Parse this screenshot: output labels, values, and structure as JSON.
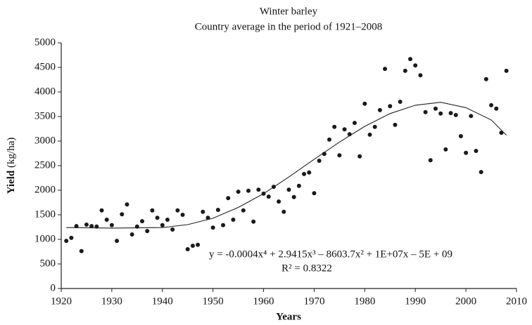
{
  "chart_data": {
    "type": "scatter",
    "title": "Winter barley",
    "subtitle": "Country average in the period of 1921–2008",
    "x_label": "Years",
    "y_label": "Yield",
    "y_unit": "(kg/ha)",
    "annotations": [
      "y = -0.0004x⁴ + 2.9415x³ – 8603.7x² + 1E+07x – 5E + 09",
      "R² = 0.8322"
    ],
    "color": "#1a1a1a",
    "x": [
      1921,
      1922,
      1923,
      1924,
      1925,
      1926,
      1927,
      1928,
      1929,
      1930,
      1931,
      1932,
      1933,
      1934,
      1935,
      1936,
      1937,
      1938,
      1939,
      1940,
      1941,
      1942,
      1943,
      1944,
      1945,
      1946,
      1947,
      1948,
      1949,
      1950,
      1951,
      1952,
      1953,
      1954,
      1955,
      1956,
      1957,
      1958,
      1959,
      1960,
      1961,
      1962,
      1963,
      1964,
      1965,
      1966,
      1967,
      1968,
      1969,
      1970,
      1971,
      1972,
      1973,
      1974,
      1975,
      1976,
      1977,
      1978,
      1979,
      1980,
      1981,
      1982,
      1983,
      1984,
      1985,
      1986,
      1987,
      1988,
      1989,
      1990,
      1991,
      1992,
      1993,
      1994,
      1995,
      1996,
      1997,
      1998,
      1999,
      2000,
      2001,
      2002,
      2003,
      2004,
      2005,
      2006,
      2007,
      2008
    ],
    "values": [
      970,
      1030,
      1270,
      760,
      1300,
      1270,
      1260,
      1590,
      1400,
      1290,
      970,
      1510,
      1710,
      1100,
      1260,
      1370,
      1170,
      1590,
      1440,
      1290,
      1400,
      1200,
      1590,
      1500,
      800,
      870,
      890,
      1560,
      1440,
      1240,
      1600,
      1290,
      1840,
      1400,
      1970,
      1590,
      1990,
      1360,
      2010,
      1930,
      1870,
      2070,
      1770,
      1560,
      2010,
      1860,
      2090,
      2330,
      2360,
      1940,
      2600,
      2740,
      3030,
      3290,
      2710,
      3240,
      3140,
      3370,
      2690,
      3760,
      3130,
      3290,
      3630,
      4470,
      3710,
      3330,
      3800,
      4430,
      4670,
      4540,
      4340,
      3590,
      2610,
      3660,
      3560,
      2830,
      3570,
      3530,
      3100,
      2760,
      3510,
      2800,
      2370,
      4260,
      3730,
      3660,
      3170,
      4430
    ],
    "trendline": {
      "x": [
        1921,
        1930,
        1940,
        1945,
        1950,
        1955,
        1960,
        1965,
        1970,
        1975,
        1980,
        1985,
        1990,
        1995,
        2000,
        2005,
        2008
      ],
      "values": [
        1240,
        1230,
        1240,
        1300,
        1430,
        1650,
        1930,
        2270,
        2630,
        2980,
        3300,
        3560,
        3730,
        3790,
        3680,
        3430,
        3120
      ]
    },
    "xlim": [
      1920,
      2010
    ],
    "xticks": [
      1920,
      1930,
      1940,
      1950,
      1960,
      1970,
      1980,
      1990,
      2000,
      2010
    ],
    "ylim": [
      0,
      5000
    ],
    "yticks": [
      0,
      500,
      1000,
      1500,
      2000,
      2500,
      3000,
      3500,
      4000,
      4500,
      5000
    ]
  }
}
